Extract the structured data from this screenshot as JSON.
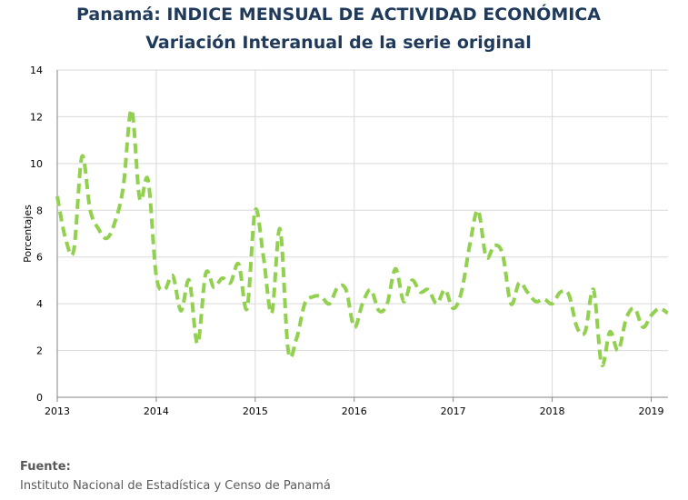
{
  "title": "Panamá: INDICE MENSUAL DE ACTIVIDAD ECONÓMICA",
  "subtitle": "Variación Interanual de la serie original",
  "source_label": "Fuente:",
  "source_text": "Instituto Nacional de Estadística y Censo de Panamá",
  "chart_data": {
    "type": "line",
    "title": "Panamá: INDICE MENSUAL DE ACTIVIDAD ECONÓMICA",
    "subtitle": "Variación Interanual de la serie original",
    "xlabel": "",
    "ylabel": "Porcentajes",
    "x_ticks": [
      "2013",
      "2014",
      "2015",
      "2016",
      "2017",
      "2018",
      "2019"
    ],
    "y_ticks": [
      "0",
      "2",
      "4",
      "6",
      "8",
      "10",
      "12",
      "14"
    ],
    "xlim": [
      2013,
      2019.17
    ],
    "ylim": [
      0,
      14
    ],
    "grid": true,
    "line_color": "#92d050",
    "line_style": "dashed",
    "series": [
      {
        "x": [
          2013.0,
          2013.083,
          2013.167,
          2013.25,
          2013.333,
          2013.417,
          2013.5,
          2013.583,
          2013.667,
          2013.75,
          2013.833,
          2013.917,
          2014.0,
          2014.083,
          2014.167,
          2014.25,
          2014.333,
          2014.417,
          2014.5,
          2014.583,
          2014.667,
          2014.75,
          2014.833,
          2014.917,
          2015.0,
          2015.083,
          2015.167,
          2015.25,
          2015.333,
          2015.417,
          2015.5,
          2015.583,
          2015.667,
          2015.75,
          2015.833,
          2015.917,
          2016.0,
          2016.083,
          2016.167,
          2016.25,
          2016.333,
          2016.417,
          2016.5,
          2016.583,
          2016.667,
          2016.75,
          2016.833,
          2016.917,
          2017.0,
          2017.083,
          2017.167,
          2017.25,
          2017.333,
          2017.417,
          2017.5,
          2017.583,
          2017.667,
          2017.75,
          2017.833,
          2017.917,
          2018.0,
          2018.083,
          2018.167,
          2018.25,
          2018.333,
          2018.417,
          2018.5,
          2018.583,
          2018.667,
          2018.75,
          2018.833,
          2018.917,
          2019.0,
          2019.083,
          2019.167
        ],
        "values": [
          8.6,
          6.8,
          6.3,
          10.3,
          8.0,
          7.2,
          6.8,
          7.5,
          9.0,
          12.3,
          8.5,
          9.3,
          5.2,
          4.6,
          5.2,
          3.7,
          5.0,
          2.3,
          5.3,
          4.7,
          5.1,
          4.9,
          5.7,
          3.8,
          8.0,
          6.0,
          3.6,
          7.2,
          2.0,
          2.5,
          4.0,
          4.3,
          4.3,
          4.0,
          4.7,
          4.6,
          3.0,
          4.0,
          4.6,
          3.7,
          4.0,
          5.5,
          4.1,
          5.0,
          4.5,
          4.6,
          4.0,
          4.6,
          3.8,
          4.5,
          6.5,
          8.0,
          6.0,
          6.5,
          6.1,
          4.0,
          4.9,
          4.5,
          4.1,
          4.2,
          4.0,
          4.5,
          4.4,
          3.0,
          2.8,
          4.6,
          1.4,
          2.8,
          2.0,
          3.4,
          3.8,
          3.0,
          3.5,
          3.8,
          3.6
        ]
      }
    ]
  }
}
